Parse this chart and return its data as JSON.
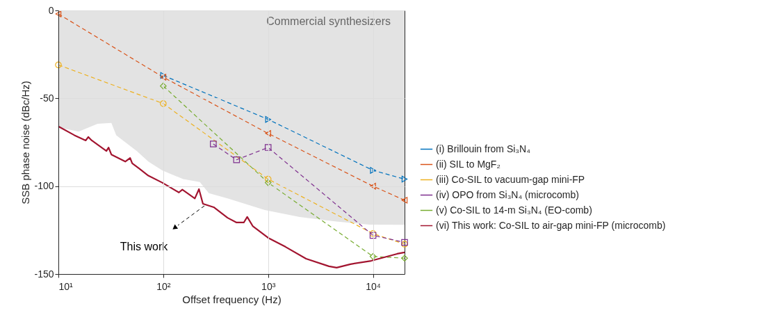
{
  "chart_data": {
    "type": "line",
    "xlabel": "Offset frequency (Hz)",
    "ylabel": "SSB phase noise (dBc/Hz)",
    "log": "x",
    "xlim": [
      10,
      20000
    ],
    "ylim": [
      -150,
      0
    ],
    "xticks": [
      {
        "value": 10,
        "label": "10¹"
      },
      {
        "value": 100,
        "label": "10²"
      },
      {
        "value": 1000,
        "label": "10³"
      },
      {
        "value": 10000,
        "label": "10⁴"
      }
    ],
    "yticks": [
      -150,
      -100,
      -50,
      0
    ],
    "grid": true,
    "legend": "right",
    "series": [
      {
        "name": "Commercial synthesizers",
        "type": "area",
        "color": "#e3e3e3",
        "x": [
          10,
          15.6,
          23.6,
          32,
          35.6,
          43.4,
          56,
          72,
          97.8,
          155,
          223,
          272,
          410,
          930,
          2000,
          4300,
          9200,
          20000
        ],
        "values": [
          -66.5,
          -69,
          -64.5,
          -64,
          -71,
          -75,
          -80,
          -86,
          -91,
          -96,
          -97.7,
          -104,
          -107,
          -113.6,
          -117.5,
          -120,
          -121.9,
          -122
        ]
      },
      {
        "name": "(i) Brillouin from Si₃N₄",
        "color": "#0072bd",
        "marker": "triangle-right",
        "line_style": "dashed",
        "x": [
          100,
          1000,
          10000,
          20000
        ],
        "values": [
          -37,
          -62,
          -91,
          -96
        ]
      },
      {
        "name": "(ii) SIL to MgF₂",
        "color": "#d95319",
        "marker": "triangle-left",
        "line_style": "dashed",
        "x": [
          10,
          100,
          1000,
          10000,
          20000
        ],
        "values": [
          -2,
          -38,
          -70,
          -100,
          -108
        ]
      },
      {
        "name": "(iii) Co-SIL to vacuum-gap mini-FP",
        "color": "#edb120",
        "marker": "circle",
        "line_style": "dashed",
        "x": [
          10,
          100,
          1000,
          10000,
          20000
        ],
        "values": [
          -31,
          -53,
          -96,
          -127,
          -133
        ]
      },
      {
        "name": "(iv) OPO from Si₃N₄ (microcomb)",
        "color": "#7e2f8e",
        "marker": "square",
        "line_style": "dashed",
        "x": [
          300,
          500,
          1000,
          10000,
          20000
        ],
        "values": [
          -76,
          -85,
          -78,
          -128,
          -132
        ]
      },
      {
        "name": "(v) Co-SIL to 14-m Si₃N₄ (EO-comb)",
        "color": "#77ac30",
        "marker": "diamond",
        "line_style": "dashed",
        "x": [
          100,
          1000,
          10000,
          20000
        ],
        "values": [
          -43,
          -98,
          -140,
          -141
        ]
      },
      {
        "name": "(vi) This work: Co-SIL to air-gap mini-FP (microcomb)",
        "color": "#a2142f",
        "marker": "none",
        "line_style": "solid",
        "x": [
          10,
          14.2,
          18.2,
          19.3,
          20.8,
          28.7,
          30.1,
          32,
          43.4,
          48.3,
          50.6,
          59,
          72,
          97.8,
          141,
          152,
          200,
          219,
          239,
          303,
          410,
          500,
          586,
          632,
          713,
          1000,
          1460,
          2300,
          3800,
          4500,
          6100,
          9600,
          17000,
          20000
        ],
        "values": [
          -66,
          -71,
          -74,
          -72,
          -74,
          -80,
          -78,
          -82,
          -86,
          -84,
          -87,
          -90,
          -94,
          -98,
          -103.6,
          -102,
          -107,
          -101.7,
          -110,
          -112,
          -118,
          -120.7,
          -120.7,
          -117.5,
          -122.7,
          -129.4,
          -134.5,
          -141.3,
          -145.6,
          -146.4,
          -144.4,
          -142.5,
          -138.5,
          -137.7
        ]
      }
    ],
    "annotations": [
      "This work"
    ]
  }
}
